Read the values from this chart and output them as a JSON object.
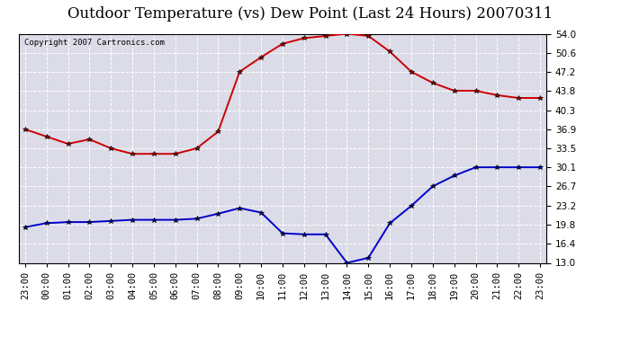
{
  "title": "Outdoor Temperature (vs) Dew Point (Last 24 Hours) 20070311",
  "copyright": "Copyright 2007 Cartronics.com",
  "x_labels": [
    "23:00",
    "00:00",
    "01:00",
    "02:00",
    "03:00",
    "04:00",
    "05:00",
    "06:00",
    "07:00",
    "08:00",
    "09:00",
    "10:00",
    "11:00",
    "12:00",
    "13:00",
    "14:00",
    "15:00",
    "16:00",
    "17:00",
    "18:00",
    "19:00",
    "20:00",
    "21:00",
    "22:00",
    "23:00"
  ],
  "temp_data": [
    36.9,
    35.6,
    34.3,
    35.1,
    33.5,
    32.5,
    32.5,
    32.5,
    33.5,
    36.5,
    47.2,
    49.8,
    52.2,
    53.2,
    53.6,
    54.0,
    53.6,
    50.8,
    47.2,
    45.2,
    43.8,
    43.8,
    43.0,
    42.5,
    42.5
  ],
  "dew_data": [
    19.4,
    20.1,
    20.3,
    20.3,
    20.5,
    20.7,
    20.7,
    20.7,
    20.9,
    21.8,
    22.8,
    22.0,
    18.3,
    18.1,
    18.1,
    13.0,
    13.9,
    20.1,
    23.2,
    26.7,
    28.6,
    30.1,
    30.1,
    30.1,
    30.1
  ],
  "temp_color": "#cc0000",
  "dew_color": "#0000cc",
  "background_color": "#ffffff",
  "plot_bg_color": "#dcdce8",
  "grid_color": "#ffffff",
  "border_color": "#000000",
  "ylim_min": 13.0,
  "ylim_max": 54.0,
  "yticks": [
    13.0,
    16.4,
    19.8,
    23.2,
    26.7,
    30.1,
    33.5,
    36.9,
    40.3,
    43.8,
    47.2,
    50.6,
    54.0
  ],
  "title_fontsize": 12,
  "tick_fontsize": 7.5,
  "copyright_fontsize": 6.5,
  "marker_size": 4,
  "linewidth": 1.4
}
